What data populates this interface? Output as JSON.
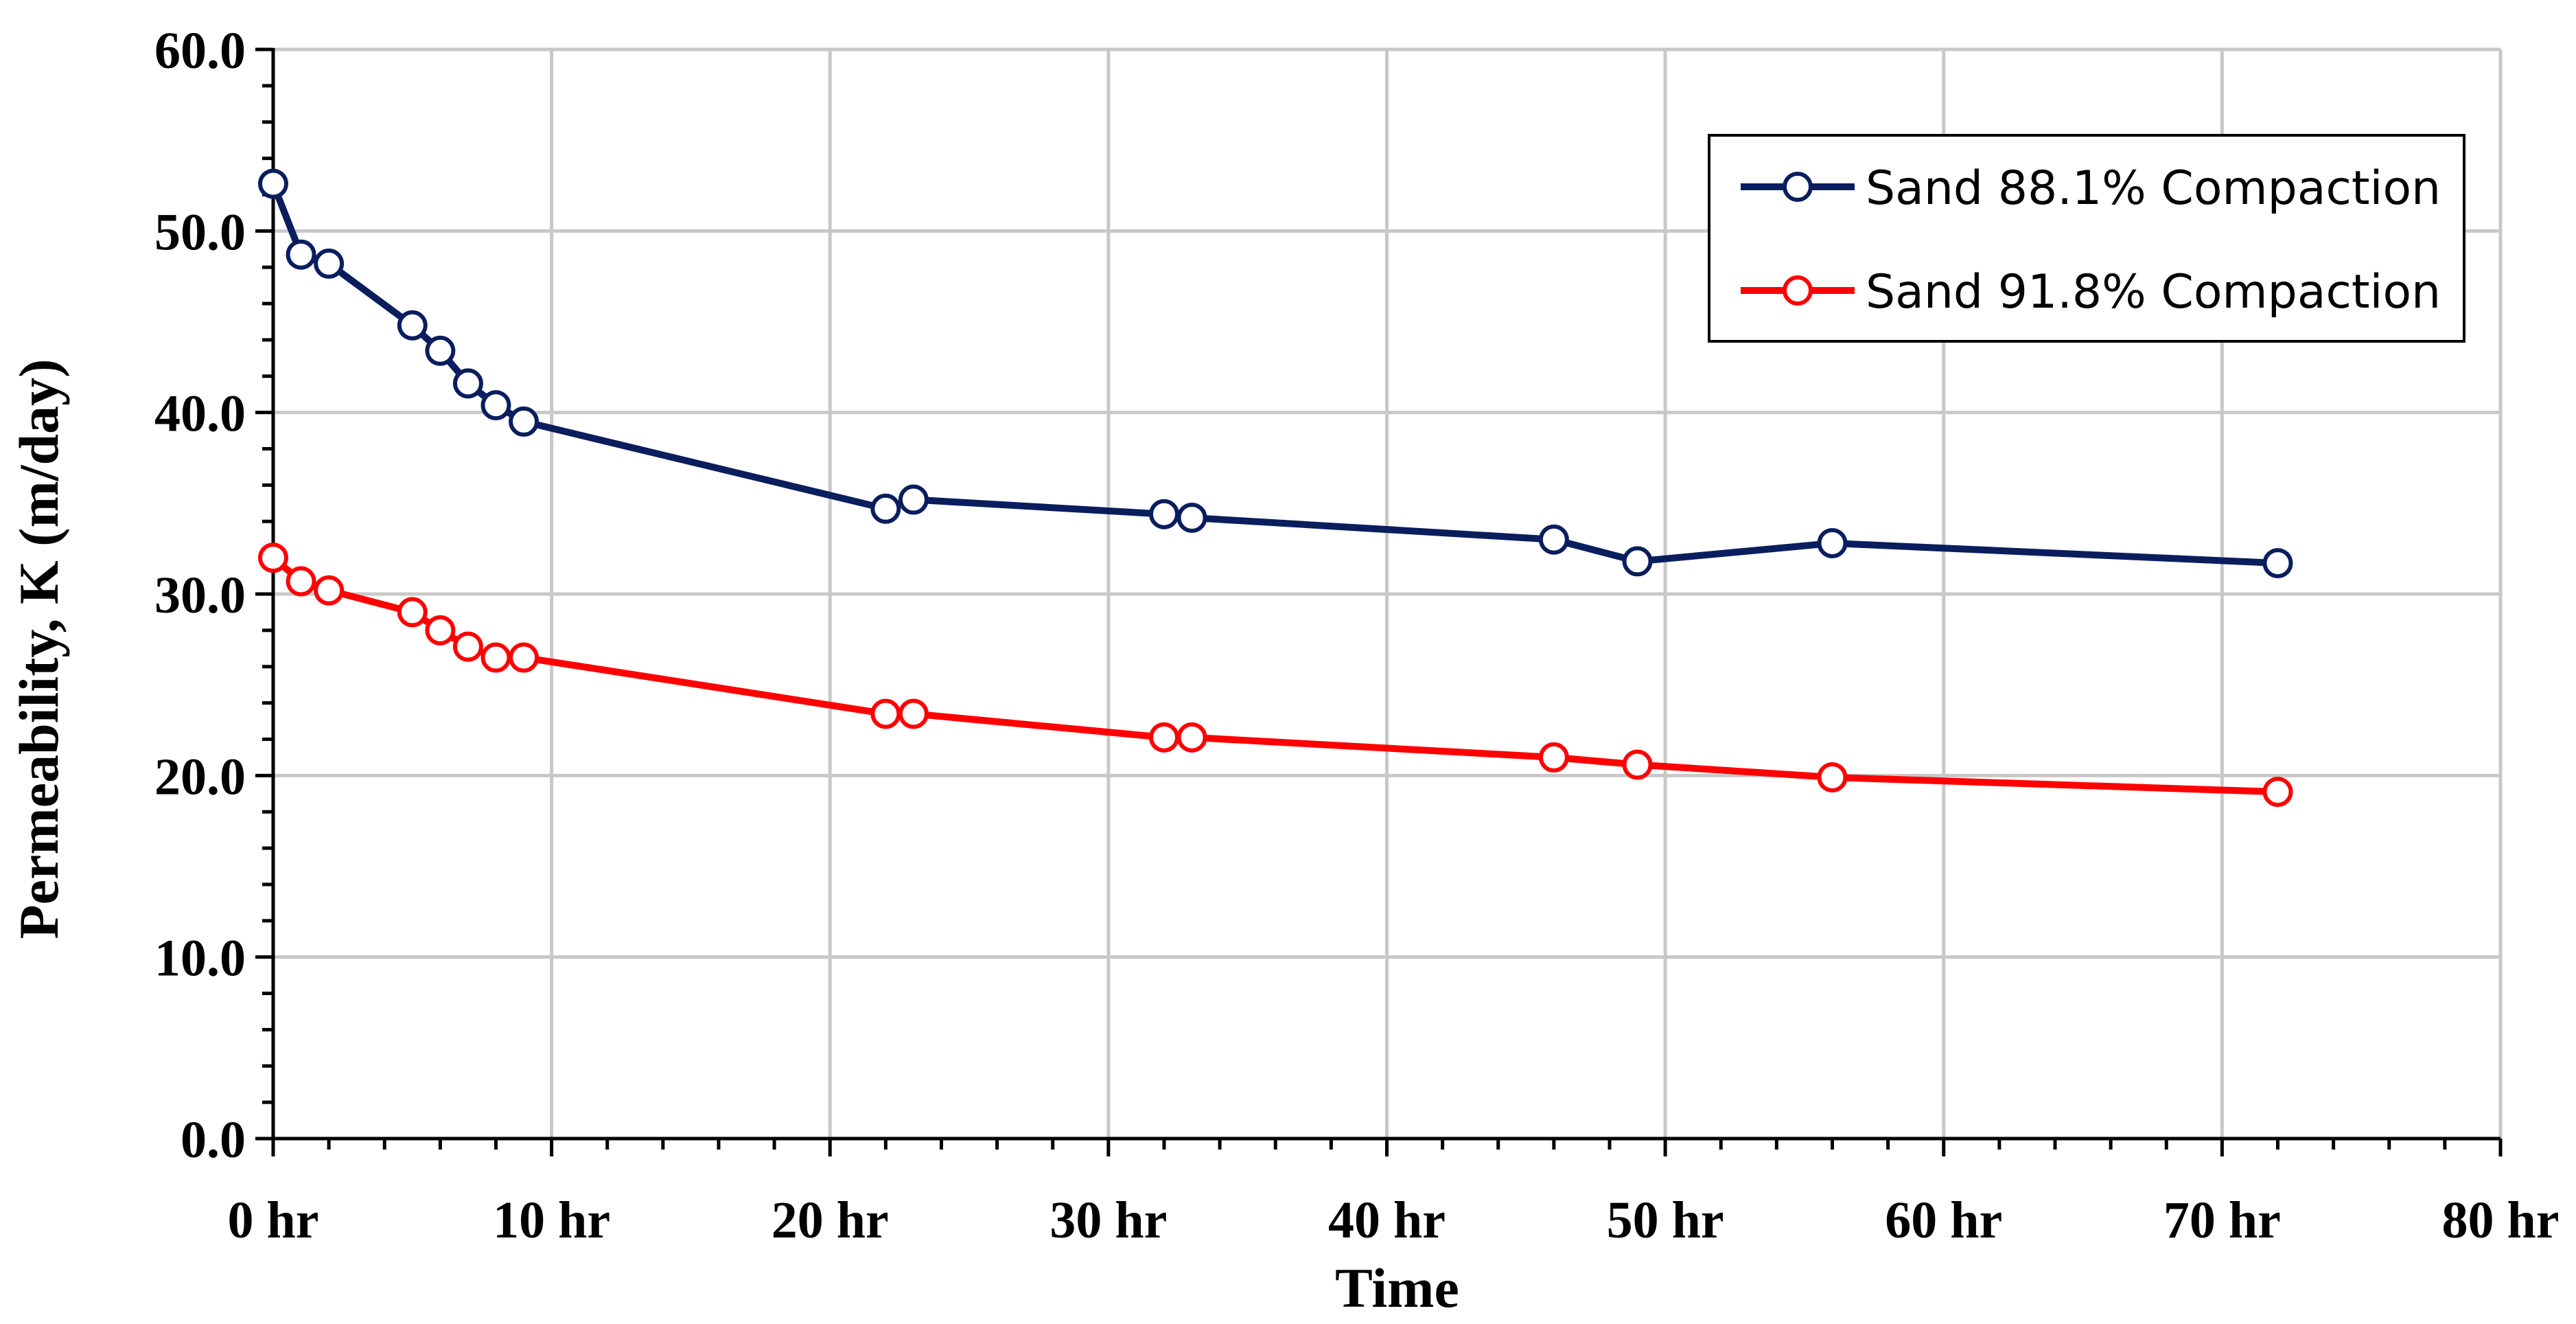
{
  "chart_data": {
    "type": "line",
    "xlabel": "Time",
    "ylabel": "Permeability, K (m/day)",
    "xlim": [
      0,
      80
    ],
    "ylim": [
      0,
      60
    ],
    "x_tick_labels": [
      "0 hr",
      "10 hr",
      "20 hr",
      "30 hr",
      "40 hr",
      "50 hr",
      "60 hr",
      "70 hr",
      "80 hr"
    ],
    "y_tick_labels": [
      "0.0",
      "10.0",
      "20.0",
      "30.0",
      "40.0",
      "50.0",
      "60.0"
    ],
    "x_ticks": [
      0,
      10,
      20,
      30,
      40,
      50,
      60,
      70,
      80
    ],
    "y_ticks": [
      0,
      10,
      20,
      30,
      40,
      50,
      60
    ],
    "grid": true,
    "legend_position": "top-right",
    "series": [
      {
        "name": "Sand 88.1% Compaction",
        "color": "#0a1e5e",
        "x": [
          0,
          1,
          2,
          5,
          6,
          7,
          8,
          9,
          22,
          23,
          32,
          33,
          46,
          49,
          56,
          72
        ],
        "y": [
          52.6,
          48.7,
          48.2,
          44.8,
          43.4,
          41.6,
          40.4,
          39.5,
          34.7,
          35.2,
          34.4,
          34.2,
          33.0,
          31.8,
          32.8,
          31.7
        ]
      },
      {
        "name": "Sand 91.8% Compaction",
        "color": "#ff0000",
        "x": [
          0,
          1,
          2,
          5,
          6,
          7,
          8,
          9,
          22,
          23,
          32,
          33,
          46,
          49,
          56,
          72
        ],
        "y": [
          32.0,
          30.7,
          30.2,
          29.0,
          28.0,
          27.1,
          26.5,
          26.5,
          23.4,
          23.4,
          22.1,
          22.1,
          21.0,
          20.6,
          19.9,
          19.1
        ]
      }
    ]
  }
}
